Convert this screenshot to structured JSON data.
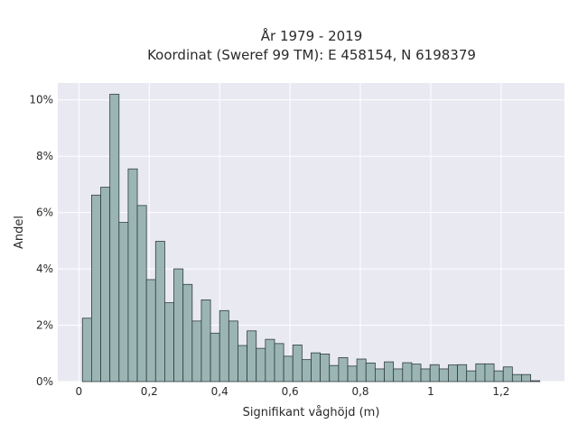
{
  "chart_data": {
    "type": "bar",
    "title_lines": [
      "År 1979 - 2019",
      "Koordinat (Sweref 99 TM): E 458154, N 6198379"
    ],
    "xlabel": "Signifikant våghöjd (m)",
    "ylabel": "Andel",
    "xlim": [
      -0.06,
      1.38
    ],
    "ylim": [
      0,
      10.6
    ],
    "x_ticks": [
      0,
      0.2,
      0.4,
      0.6,
      0.8,
      1.0,
      1.2
    ],
    "x_tick_labels": [
      "0",
      "0,2",
      "0,4",
      "0,6",
      "0,8",
      "1",
      "1,2"
    ],
    "y_ticks": [
      0,
      2,
      4,
      6,
      8,
      10
    ],
    "y_tick_labels": [
      "0%",
      "2%",
      "4%",
      "6%",
      "8%",
      "10%"
    ],
    "grid": true,
    "bin_start": 0.01,
    "bin_width": 0.026,
    "values": [
      2.25,
      6.62,
      6.9,
      10.2,
      5.65,
      7.55,
      6.25,
      3.62,
      4.98,
      2.8,
      4.0,
      3.45,
      2.15,
      2.9,
      1.72,
      2.52,
      2.15,
      1.28,
      1.8,
      1.18,
      1.5,
      1.35,
      0.9,
      1.3,
      0.78,
      1.02,
      0.98,
      0.57,
      0.85,
      0.55,
      0.8,
      0.66,
      0.45,
      0.7,
      0.45,
      0.67,
      0.62,
      0.45,
      0.6,
      0.45,
      0.59,
      0.6,
      0.38,
      0.63,
      0.63,
      0.38,
      0.52,
      0.25,
      0.25,
      0.03
    ],
    "colors": {
      "bar_fill": "#9bb5b5",
      "bar_stroke": "#2f3d3d",
      "plot_bg": "#e9e9f2",
      "grid": "#ffffff"
    }
  }
}
